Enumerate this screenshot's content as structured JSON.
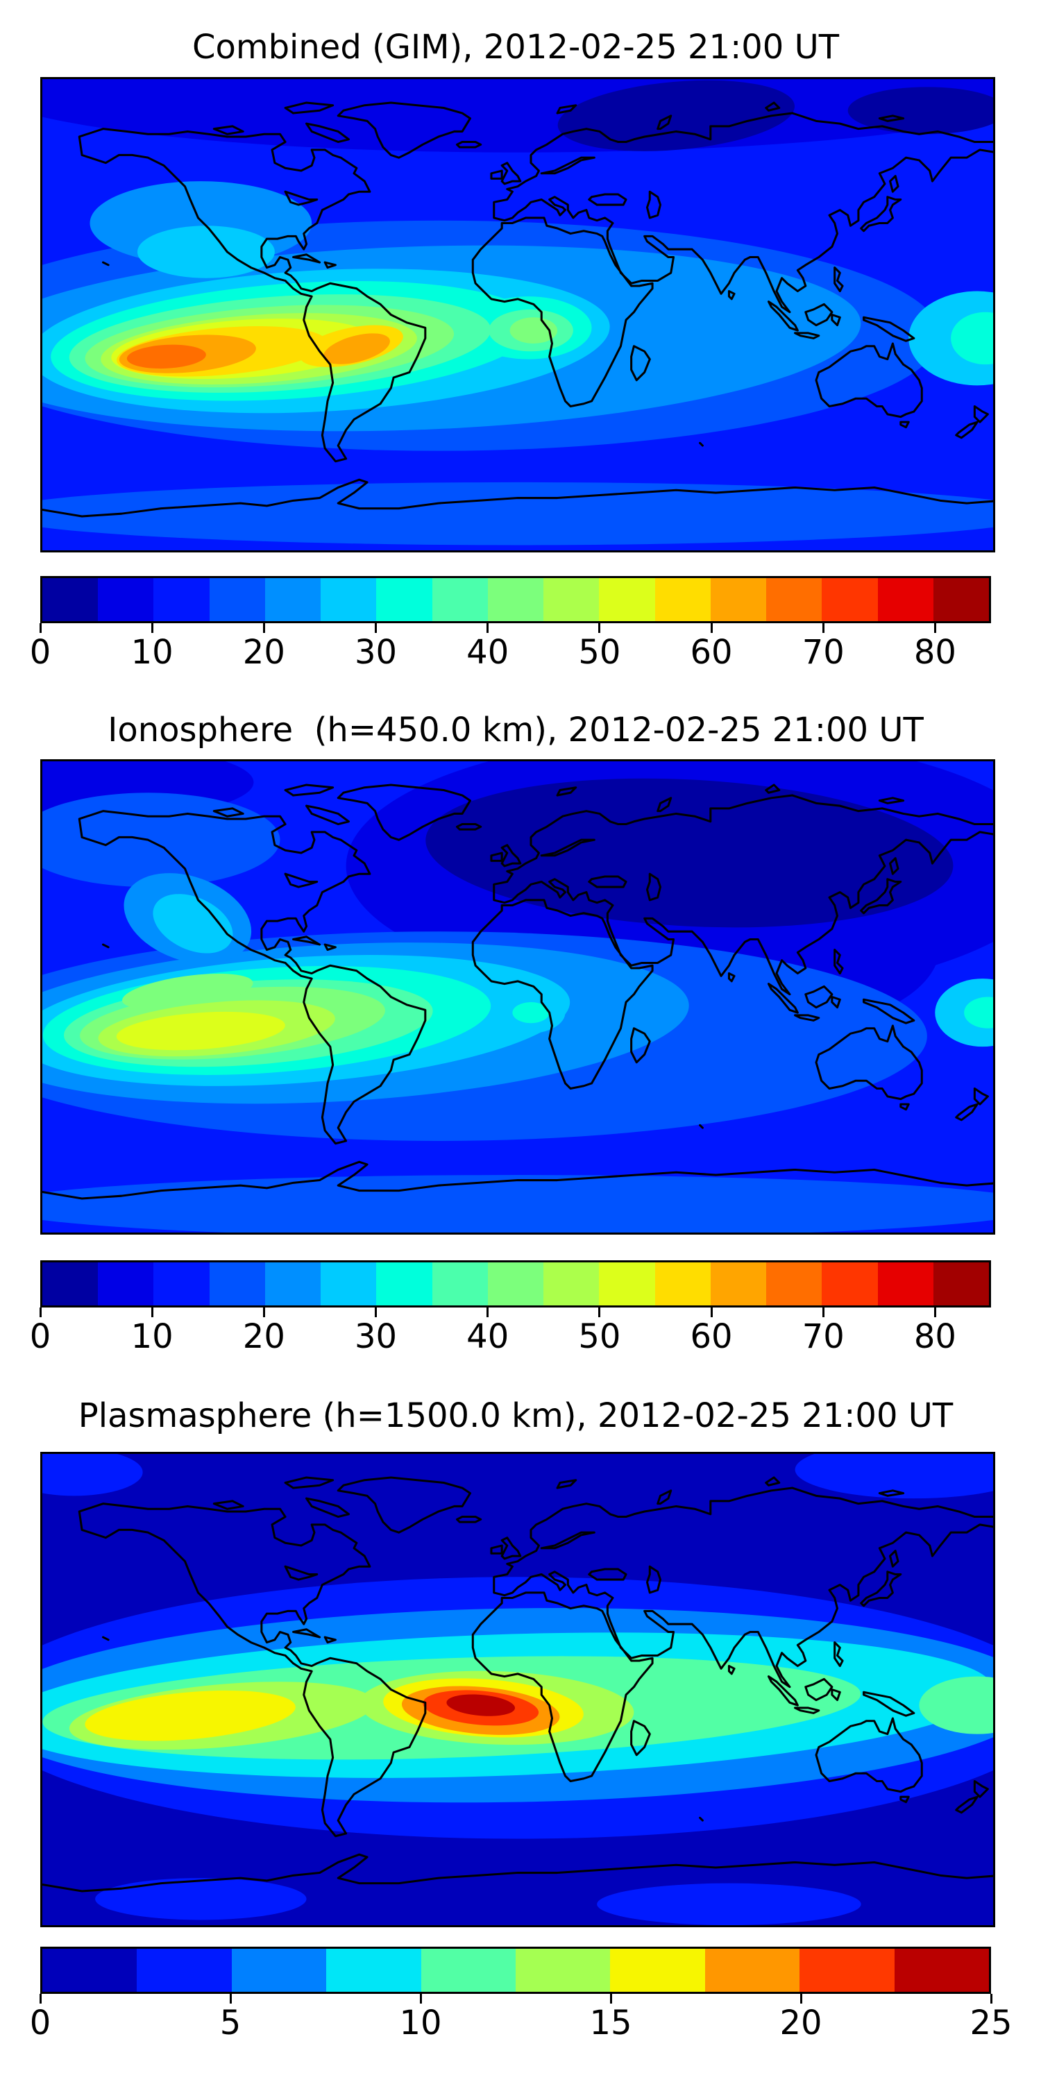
{
  "figure": {
    "background": "#ffffff",
    "panels": [
      {
        "id": "combined",
        "title": "Combined (GIM), 2012-02-25 21:00 UT",
        "colorbar": {
          "min": 0,
          "max": 85,
          "n_segments": 17,
          "tick_labels": [
            "0",
            "10",
            "20",
            "30",
            "40",
            "50",
            "60",
            "70",
            "80"
          ],
          "tick_values": [
            0,
            10,
            20,
            30,
            40,
            50,
            60,
            70,
            80
          ],
          "colors": [
            "#0000a2",
            "#0000e6",
            "#0017ff",
            "#0053ff",
            "#008fff",
            "#00cbff",
            "#00ffdc",
            "#4bffac",
            "#7cff7c",
            "#acff4b",
            "#dcff1b",
            "#ffdd00",
            "#ffa500",
            "#ff6e00",
            "#ff3600",
            "#e60000",
            "#a20000"
          ]
        }
      },
      {
        "id": "ionosphere",
        "title": "Ionosphere  (h=450.0 km), 2012-02-25 21:00 UT",
        "colorbar": {
          "min": 0,
          "max": 85,
          "n_segments": 17,
          "tick_labels": [
            "0",
            "10",
            "20",
            "30",
            "40",
            "50",
            "60",
            "70",
            "80"
          ],
          "tick_values": [
            0,
            10,
            20,
            30,
            40,
            50,
            60,
            70,
            80
          ],
          "colors": [
            "#0000a2",
            "#0000e6",
            "#0017ff",
            "#0053ff",
            "#008fff",
            "#00cbff",
            "#00ffdc",
            "#4bffac",
            "#7cff7c",
            "#acff4b",
            "#dcff1b",
            "#ffdd00",
            "#ffa500",
            "#ff6e00",
            "#ff3600",
            "#e60000",
            "#a20000"
          ]
        }
      },
      {
        "id": "plasmasphere",
        "title": "Plasmasphere (h=1500.0 km), 2012-02-25 21:00 UT",
        "colorbar": {
          "min": 0,
          "max": 25,
          "n_segments": 10,
          "tick_labels": [
            "0",
            "5",
            "10",
            "15",
            "20",
            "25"
          ],
          "tick_values": [
            0,
            5,
            10,
            15,
            20,
            25
          ],
          "colors": [
            "#0000ba",
            "#001aff",
            "#0080ff",
            "#00e6f7",
            "#52ffa5",
            "#a5ff52",
            "#f7f600",
            "#ff9700",
            "#ff3900",
            "#ba0000"
          ]
        }
      }
    ],
    "coastline_color": "#000000",
    "colormap": "jet"
  },
  "chart_data": [
    {
      "type": "heatmap",
      "title": "Combined (GIM), 2012-02-25 21:00 UT",
      "projection": "equirectangular world map, lon -180..180, lat -90..90",
      "colormap": "jet",
      "levels": [
        0,
        5,
        10,
        15,
        20,
        25,
        30,
        35,
        40,
        45,
        50,
        55,
        60,
        65,
        70,
        75,
        80,
        85
      ],
      "colorbar_ticks": [
        0,
        10,
        20,
        30,
        40,
        50,
        60,
        70,
        80
      ],
      "legend_position": "horizontal colorbar below map",
      "grid": false,
      "features": [
        {
          "name": "primary maximum, equatorial anomaly SE Pacific",
          "lon": -135,
          "lat": -16,
          "value": "65-70"
        },
        {
          "name": "secondary maximum over South America",
          "lon": -60,
          "lat": -12,
          "value": "60-65"
        },
        {
          "name": "West Africa equatorial enhancement",
          "lon": 5,
          "lat": -4,
          "value": "45-50"
        },
        {
          "name": "dateline equatorial patch",
          "lon": 175,
          "lat": -9,
          "value": "30-35"
        },
        {
          "name": "minimum, night side northern Eurasia",
          "lon": 60,
          "lat": 65,
          "value": "0-5"
        },
        {
          "name": "general ocean background",
          "value": "10-20"
        }
      ]
    },
    {
      "type": "heatmap",
      "title": "Ionosphere  (h=450.0 km), 2012-02-25 21:00 UT",
      "projection": "equirectangular world map, lon -180..180, lat -90..90",
      "colormap": "jet",
      "levels": [
        0,
        5,
        10,
        15,
        20,
        25,
        30,
        35,
        40,
        45,
        50,
        55,
        60,
        65,
        70,
        75,
        80,
        85
      ],
      "colorbar_ticks": [
        0,
        10,
        20,
        30,
        40,
        50,
        60,
        70,
        80
      ],
      "legend_position": "horizontal colorbar below map",
      "grid": false,
      "features": [
        {
          "name": "primary maximum SE Pacific / west of South America",
          "lon": -112,
          "lat": -15,
          "value": "50-55"
        },
        {
          "name": "broad minimum over Eurasia (night side)",
          "lon": 70,
          "lat": 50,
          "value": "0-10"
        },
        {
          "name": "West Africa equatorial patch",
          "lon": 4,
          "lat": -4,
          "value": "25-30"
        },
        {
          "name": "dateline equatorial patch",
          "lon": 178,
          "lat": -5,
          "value": "25-30"
        },
        {
          "name": "general background",
          "value": "10-20"
        }
      ]
    },
    {
      "type": "heatmap",
      "title": "Plasmasphere (h=1500.0 km), 2012-02-25 21:00 UT",
      "projection": "equirectangular world map, lon -180..180, lat -90..90",
      "colormap": "jet",
      "levels": [
        0,
        2.5,
        5,
        7.5,
        10,
        12.5,
        15,
        17.5,
        20,
        22.5,
        25
      ],
      "colorbar_ticks": [
        0,
        5,
        10,
        15,
        20,
        25
      ],
      "legend_position": "horizontal colorbar below map",
      "grid": false,
      "features": [
        {
          "name": "primary maximum, equatorial Atlantic / West Africa",
          "lon": -14,
          "lat": -6,
          "value": "22.5-25"
        },
        {
          "name": "Pacific equatorial band maximum",
          "lon": -125,
          "lat": -10,
          "value": "15-17.5"
        },
        {
          "name": "equatorial band",
          "lat": "±20",
          "value": "10-15"
        },
        {
          "name": "polar minima north and south",
          "value": "0-5"
        }
      ]
    }
  ]
}
